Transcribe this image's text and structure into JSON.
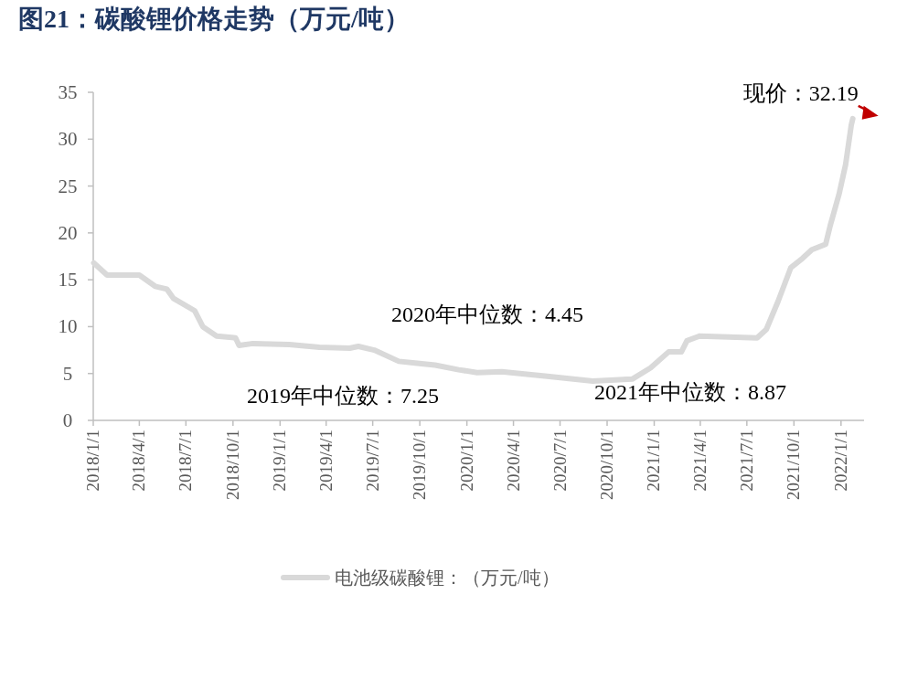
{
  "chart_data": {
    "type": "line",
    "title": "图21：碳酸锂价格走势（万元/吨）",
    "x": [
      "2018-01-02",
      "2018-01-28",
      "2018-04-01",
      "2018-05-02",
      "2018-05-25",
      "2018-06-07",
      "2018-07-18",
      "2018-08-03",
      "2018-08-30",
      "2018-10-06",
      "2018-10-13",
      "2018-11-09",
      "2019-01-19",
      "2019-03-19",
      "2019-05-17",
      "2019-06-03",
      "2019-07-04",
      "2019-08-21",
      "2019-09-26",
      "2019-10-31",
      "2019-12-16",
      "2020-01-21",
      "2020-03-09",
      "2020-06-06",
      "2020-09-03",
      "2020-11-19",
      "2020-12-25",
      "2021-01-29",
      "2021-02-23",
      "2021-03-06",
      "2021-03-31",
      "2021-07-21",
      "2021-08-08",
      "2021-08-31",
      "2021-09-25",
      "2021-10-18",
      "2021-11-05",
      "2021-12-02",
      "2021-12-11",
      "2021-12-28",
      "2022-01-10",
      "2022-01-21",
      "2022-01-24"
    ],
    "series": [
      {
        "name": "电池级碳酸锂：（万元/吨）",
        "color": "#d9d9d9",
        "values": [
          16.8,
          15.5,
          15.5,
          14.3,
          14.0,
          13.0,
          11.7,
          10.0,
          9.0,
          8.8,
          8.0,
          8.2,
          8.1,
          7.8,
          7.7,
          7.9,
          7.5,
          6.3,
          6.1,
          5.9,
          5.4,
          5.1,
          5.2,
          4.7,
          4.2,
          4.4,
          5.6,
          7.3,
          7.3,
          8.5,
          9.0,
          8.8,
          9.7,
          12.7,
          16.3,
          17.3,
          18.2,
          18.8,
          20.8,
          24.1,
          27.3,
          31.5,
          32.19
        ]
      }
    ],
    "xlim": [
      "2018-01-01",
      "2022-02-15"
    ],
    "xticks": [
      {
        "value": "2018-01-01",
        "label": "2018/1/1"
      },
      {
        "value": "2018-04-01",
        "label": "2018/4/1"
      },
      {
        "value": "2018-07-01",
        "label": "2018/7/1"
      },
      {
        "value": "2018-10-01",
        "label": "2018/10/1"
      },
      {
        "value": "2019-01-01",
        "label": "2019/1/1"
      },
      {
        "value": "2019-04-01",
        "label": "2019/4/1"
      },
      {
        "value": "2019-07-01",
        "label": "2019/7/1"
      },
      {
        "value": "2019-10-01",
        "label": "2019/10/1"
      },
      {
        "value": "2020-01-01",
        "label": "2020/1/1"
      },
      {
        "value": "2020-04-01",
        "label": "2020/4/1"
      },
      {
        "value": "2020-07-01",
        "label": "2020/7/1"
      },
      {
        "value": "2020-10-01",
        "label": "2020/10/1"
      },
      {
        "value": "2021-01-01",
        "label": "2021/1/1"
      },
      {
        "value": "2021-04-01",
        "label": "2021/4/1"
      },
      {
        "value": "2021-07-01",
        "label": "2021/7/1"
      },
      {
        "value": "2021-10-01",
        "label": "2021/10/1"
      },
      {
        "value": "2022-01-01",
        "label": "2022/1/1"
      }
    ],
    "ylim": [
      0,
      35
    ],
    "yticks": [
      0,
      5,
      10,
      15,
      20,
      25,
      30,
      35
    ],
    "annotations": [
      {
        "text": "现价：32.19",
        "x": "2022-01-24",
        "y": 32.19
      },
      "2020年中位数：4.45",
      "2019年中位数：7.25",
      "2021年中位数：8.87"
    ],
    "legend": "bottom"
  }
}
